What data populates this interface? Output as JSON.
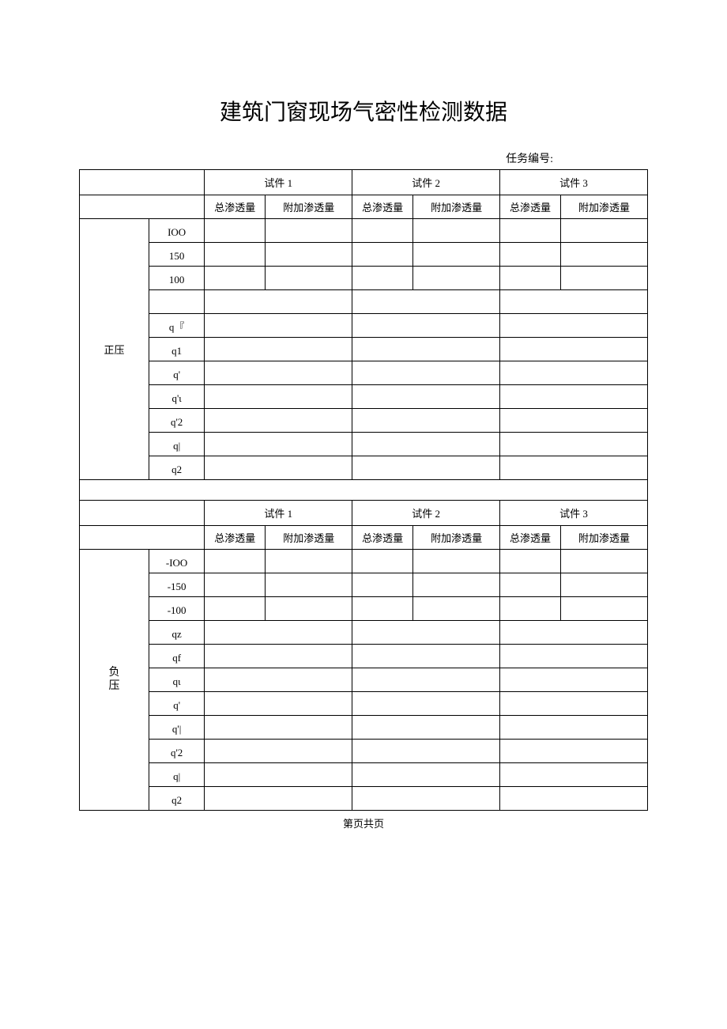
{
  "title": "建筑门窗现场气密性检测数据",
  "task_label": "任务编号:",
  "specimens": [
    "试件 1",
    "试件 2",
    "试件 3"
  ],
  "subheaders": {
    "total": "总渗透量",
    "addl": "附加渗透量"
  },
  "sections": {
    "positive": {
      "label": "正压",
      "rows": [
        "IOO",
        "150",
        "100",
        "",
        "q『",
        "q1",
        "q'",
        "q'ι",
        "q'2",
        "q|",
        "q2"
      ]
    },
    "negative": {
      "label_line1": "负",
      "label_line2": "压",
      "rows": [
        "-IOO",
        "-150",
        "-100",
        "qz",
        "qf",
        "qι",
        "q'",
        "q'|",
        "q'2",
        "q|",
        "q2"
      ]
    }
  },
  "footer": "第页共页"
}
